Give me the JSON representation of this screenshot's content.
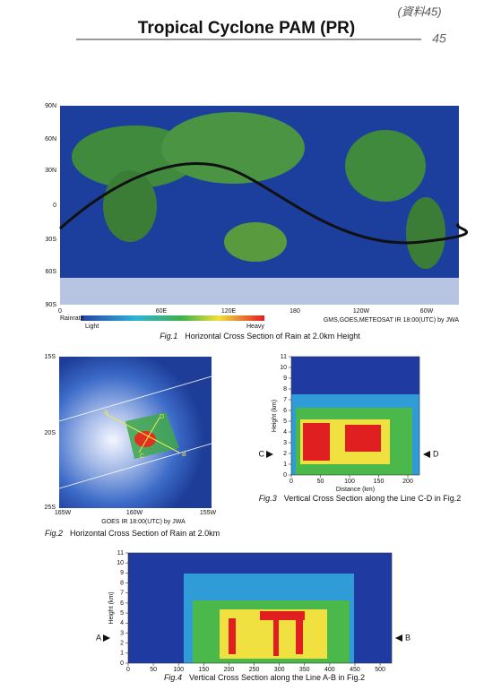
{
  "header": {
    "title": "Tropical Cyclone PAM (PR)",
    "note": "(資料45)",
    "page_number": "45"
  },
  "fig1": {
    "y_labels": [
      "90N",
      "60N",
      "30N",
      "0",
      "30S",
      "60S",
      "90S"
    ],
    "x_labels": [
      "0",
      "60E",
      "120E",
      "180",
      "120W",
      "60W"
    ],
    "legend_title": "Rainrate",
    "legend_low": "Light",
    "legend_high": "Heavy",
    "source": "GMS,GOES,METEOSAT IR 18:00(UTC) by JWA",
    "caption_label": "Fig.1",
    "caption": "Horizontal Cross Section of Rain at 2.0km Height"
  },
  "fig2": {
    "y_labels": [
      "15S",
      "20S",
      "25S"
    ],
    "x_labels": [
      "165W",
      "160W",
      "155W"
    ],
    "points": [
      "A",
      "B",
      "C",
      "D"
    ],
    "source": "GOES IR 18:00(UTC) by JWA",
    "caption_label": "Fig.2",
    "caption": "Horizontal Cross Section of Rain at 2.0km"
  },
  "fig3": {
    "yticks": [
      0,
      1,
      2,
      3,
      4,
      5,
      6,
      7,
      8,
      9,
      10,
      11
    ],
    "xticks": [
      0,
      50,
      100,
      150,
      200
    ],
    "ylabel": "Height (km)",
    "xlabel": "Distance (km)",
    "left_marker": "C",
    "right_marker": "D",
    "caption_label": "Fig.3",
    "caption": "Vertical Cross  Section along the Line C-D in Fig.2"
  },
  "fig4": {
    "yticks": [
      0,
      1,
      2,
      3,
      4,
      5,
      6,
      7,
      8,
      9,
      10,
      11
    ],
    "xticks": [
      0,
      50,
      100,
      150,
      200,
      250,
      300,
      350,
      400,
      450,
      500
    ],
    "ylabel": "Height (km)",
    "left_marker": "A",
    "right_marker": "B",
    "caption_label": "Fig.4",
    "caption": "Vertical Cross  Section along the Line A-B in Fig.2"
  }
}
